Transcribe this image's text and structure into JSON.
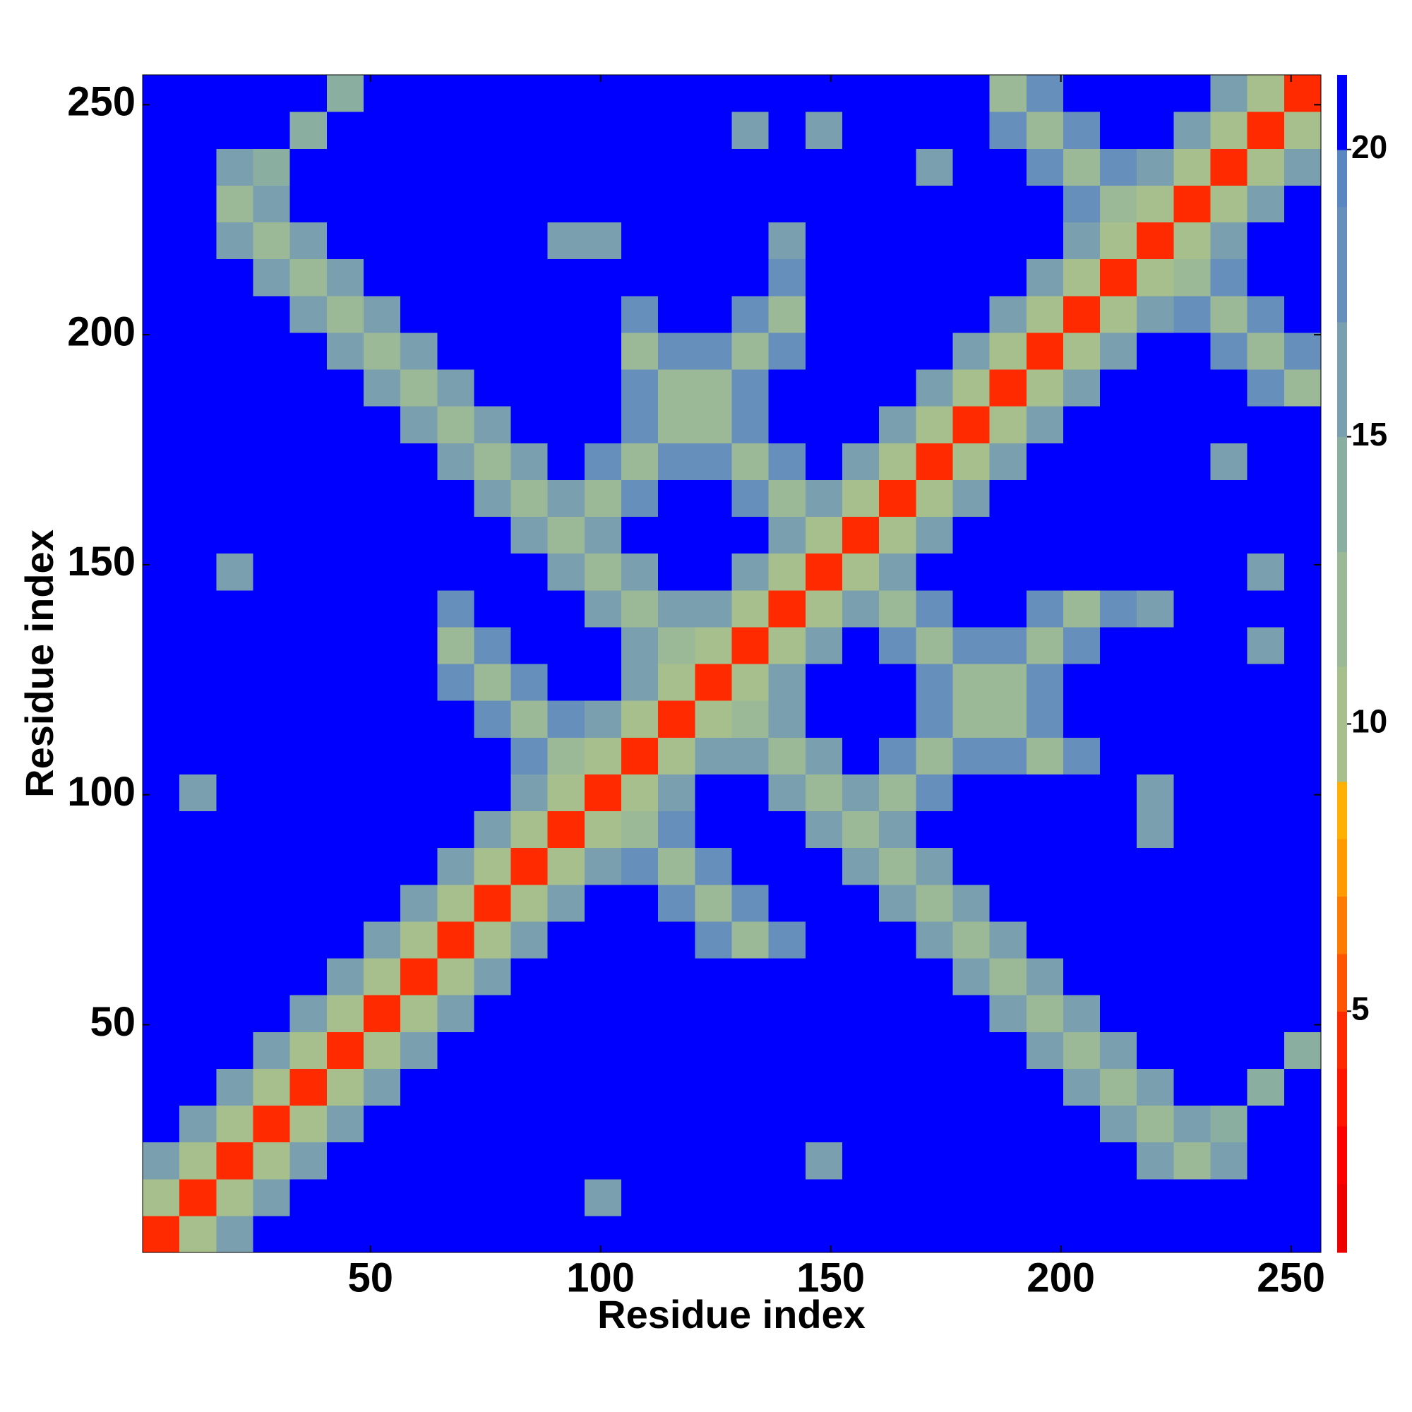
{
  "chart_data": {
    "type": "heatmap",
    "xlabel": "Residue index",
    "ylabel": "Residue index",
    "xlim": [
      0.5,
      256.5
    ],
    "ylim": [
      0.5,
      256.5
    ],
    "xticks": [
      50,
      100,
      150,
      200,
      250
    ],
    "yticks": [
      50,
      100,
      150,
      200,
      250
    ],
    "xbins": [
      0.5,
      8.5,
      16.5,
      24.5,
      32.5,
      40.5,
      48.5,
      56.5,
      64.5,
      72.5,
      80.5,
      88.5,
      96.5,
      104.5,
      112.5,
      120.5,
      128.5,
      136.5,
      144.5,
      152.5,
      160.5,
      168.5,
      176.5,
      184.5,
      192.5,
      200.5,
      208.5,
      216.5,
      224.5,
      232.5,
      240.5,
      248.5,
      256.5
    ],
    "ybins": [
      0.5,
      8.5,
      16.5,
      24.5,
      32.5,
      40.5,
      48.5,
      56.5,
      64.5,
      72.5,
      80.5,
      88.5,
      96.5,
      104.5,
      112.5,
      120.5,
      128.5,
      136.5,
      144.5,
      152.5,
      160.5,
      168.5,
      176.5,
      184.5,
      192.5,
      200.5,
      208.5,
      216.5,
      224.5,
      232.5,
      240.5,
      248.5,
      256.5
    ],
    "values": [
      [
        4,
        9,
        15,
        21,
        21,
        21,
        21,
        21,
        21,
        21,
        21,
        21,
        21,
        21,
        21,
        21,
        21,
        21,
        21,
        21,
        21,
        21,
        21,
        21,
        21,
        21,
        21,
        21,
        21,
        21,
        21,
        21
      ],
      [
        9,
        4,
        9,
        15,
        21,
        21,
        21,
        21,
        21,
        21,
        21,
        21,
        16,
        21,
        21,
        21,
        21,
        21,
        21,
        21,
        21,
        21,
        21,
        21,
        21,
        21,
        21,
        21,
        21,
        21,
        21,
        21
      ],
      [
        15,
        9,
        4,
        9,
        15,
        21,
        21,
        21,
        21,
        21,
        21,
        21,
        21,
        21,
        21,
        21,
        21,
        21,
        15,
        21,
        21,
        21,
        21,
        21,
        21,
        21,
        21,
        16,
        11,
        16,
        21,
        21
      ],
      [
        21,
        15,
        9,
        4,
        9,
        15,
        21,
        21,
        21,
        21,
        21,
        21,
        21,
        21,
        21,
        21,
        21,
        21,
        21,
        21,
        21,
        21,
        21,
        21,
        21,
        21,
        16,
        11,
        16,
        13,
        21,
        21
      ],
      [
        21,
        21,
        15,
        9,
        4,
        9,
        15,
        21,
        21,
        21,
        21,
        21,
        21,
        21,
        21,
        21,
        21,
        21,
        21,
        21,
        21,
        21,
        21,
        21,
        21,
        16,
        11,
        16,
        21,
        21,
        13,
        21
      ],
      [
        21,
        21,
        21,
        15,
        9,
        4,
        9,
        15,
        21,
        21,
        21,
        21,
        21,
        21,
        21,
        21,
        21,
        21,
        21,
        21,
        21,
        21,
        21,
        21,
        16,
        11,
        16,
        21,
        21,
        21,
        21,
        13
      ],
      [
        21,
        21,
        21,
        21,
        15,
        9,
        4,
        9,
        15,
        21,
        21,
        21,
        21,
        21,
        21,
        21,
        21,
        21,
        21,
        21,
        21,
        21,
        21,
        16,
        11,
        16,
        21,
        21,
        21,
        21,
        21,
        21
      ],
      [
        21,
        21,
        21,
        21,
        21,
        15,
        9,
        4,
        9,
        15,
        21,
        21,
        21,
        21,
        21,
        21,
        21,
        21,
        21,
        21,
        21,
        21,
        16,
        11,
        16,
        21,
        21,
        21,
        21,
        21,
        21,
        21
      ],
      [
        21,
        21,
        21,
        21,
        21,
        21,
        15,
        9,
        4,
        9,
        15,
        21,
        21,
        21,
        21,
        17,
        12,
        17,
        21,
        21,
        21,
        16,
        11,
        16,
        21,
        21,
        21,
        21,
        21,
        21,
        21,
        21
      ],
      [
        21,
        21,
        21,
        21,
        21,
        21,
        21,
        15,
        9,
        4,
        9,
        15,
        21,
        21,
        17,
        12,
        17,
        21,
        21,
        21,
        16,
        11,
        16,
        21,
        21,
        21,
        21,
        21,
        21,
        21,
        21,
        21
      ],
      [
        21,
        21,
        21,
        21,
        21,
        21,
        21,
        21,
        15,
        9,
        4,
        9,
        15,
        17,
        12,
        17,
        21,
        21,
        21,
        16,
        11,
        16,
        21,
        21,
        21,
        21,
        21,
        21,
        21,
        21,
        21,
        21
      ],
      [
        21,
        21,
        21,
        21,
        21,
        21,
        21,
        21,
        21,
        15,
        9,
        4,
        9,
        12,
        17,
        21,
        21,
        21,
        16,
        11,
        16,
        21,
        21,
        21,
        21,
        21,
        21,
        16,
        21,
        21,
        21,
        21
      ],
      [
        21,
        16,
        21,
        21,
        21,
        21,
        21,
        21,
        21,
        21,
        15,
        9,
        4,
        9,
        15,
        21,
        21,
        16,
        11,
        16,
        12,
        17,
        21,
        21,
        21,
        21,
        21,
        16,
        21,
        21,
        21,
        21
      ],
      [
        21,
        21,
        21,
        21,
        21,
        21,
        21,
        21,
        21,
        21,
        17,
        12,
        9,
        4,
        9,
        15,
        16,
        11,
        16,
        21,
        17,
        12,
        17,
        17,
        12,
        17,
        21,
        21,
        21,
        21,
        21,
        21
      ],
      [
        21,
        21,
        21,
        21,
        21,
        21,
        21,
        21,
        21,
        17,
        12,
        17,
        15,
        9,
        4,
        9,
        11,
        16,
        21,
        21,
        21,
        17,
        12,
        12,
        17,
        21,
        21,
        21,
        21,
        21,
        21,
        21
      ],
      [
        21,
        21,
        21,
        21,
        21,
        21,
        21,
        21,
        17,
        12,
        17,
        21,
        21,
        15,
        9,
        4,
        9,
        15,
        21,
        21,
        21,
        17,
        12,
        12,
        17,
        21,
        21,
        21,
        21,
        21,
        21,
        21
      ],
      [
        21,
        21,
        21,
        21,
        21,
        21,
        21,
        21,
        12,
        17,
        21,
        21,
        21,
        16,
        11,
        9,
        4,
        9,
        15,
        21,
        17,
        12,
        17,
        17,
        12,
        17,
        21,
        21,
        21,
        21,
        15,
        21
      ],
      [
        21,
        21,
        21,
        21,
        21,
        21,
        21,
        21,
        17,
        21,
        21,
        21,
        16,
        11,
        16,
        15,
        9,
        4,
        9,
        15,
        12,
        17,
        21,
        21,
        17,
        12,
        17,
        16,
        21,
        21,
        21,
        21
      ],
      [
        21,
        21,
        15,
        21,
        21,
        21,
        21,
        21,
        21,
        21,
        21,
        16,
        11,
        16,
        21,
        21,
        15,
        9,
        4,
        9,
        15,
        21,
        21,
        21,
        21,
        21,
        21,
        21,
        21,
        21,
        16,
        21
      ],
      [
        21,
        21,
        21,
        21,
        21,
        21,
        21,
        21,
        21,
        21,
        16,
        11,
        16,
        21,
        21,
        21,
        21,
        15,
        9,
        4,
        9,
        15,
        21,
        21,
        21,
        21,
        21,
        21,
        21,
        21,
        21,
        21
      ],
      [
        21,
        21,
        21,
        21,
        21,
        21,
        21,
        21,
        21,
        16,
        11,
        16,
        12,
        17,
        21,
        21,
        17,
        12,
        15,
        9,
        4,
        9,
        15,
        21,
        21,
        21,
        21,
        21,
        21,
        21,
        21,
        21
      ],
      [
        21,
        21,
        21,
        21,
        21,
        21,
        21,
        21,
        16,
        11,
        16,
        21,
        17,
        12,
        17,
        17,
        12,
        17,
        21,
        15,
        9,
        4,
        9,
        15,
        21,
        21,
        21,
        21,
        21,
        16,
        21,
        21
      ],
      [
        21,
        21,
        21,
        21,
        21,
        21,
        21,
        16,
        11,
        16,
        21,
        21,
        21,
        17,
        12,
        12,
        17,
        21,
        21,
        21,
        15,
        9,
        4,
        9,
        15,
        21,
        21,
        21,
        21,
        21,
        21,
        21
      ],
      [
        21,
        21,
        21,
        21,
        21,
        21,
        16,
        11,
        16,
        21,
        21,
        21,
        21,
        17,
        12,
        12,
        17,
        21,
        21,
        21,
        21,
        15,
        9,
        4,
        9,
        15,
        21,
        21,
        21,
        21,
        17,
        12
      ],
      [
        21,
        21,
        21,
        21,
        21,
        16,
        11,
        16,
        21,
        21,
        21,
        21,
        21,
        12,
        17,
        17,
        12,
        17,
        21,
        21,
        21,
        21,
        15,
        9,
        4,
        9,
        15,
        21,
        21,
        17,
        12,
        17
      ],
      [
        21,
        21,
        21,
        21,
        16,
        11,
        16,
        21,
        21,
        21,
        21,
        21,
        21,
        17,
        21,
        21,
        17,
        12,
        21,
        21,
        21,
        21,
        21,
        15,
        9,
        4,
        9,
        15,
        17,
        12,
        17,
        21
      ],
      [
        21,
        21,
        21,
        16,
        11,
        16,
        21,
        21,
        21,
        21,
        21,
        21,
        21,
        21,
        21,
        21,
        21,
        17,
        21,
        21,
        21,
        21,
        21,
        21,
        15,
        9,
        4,
        9,
        12,
        17,
        21,
        21
      ],
      [
        21,
        21,
        16,
        11,
        16,
        21,
        21,
        21,
        21,
        21,
        21,
        16,
        16,
        21,
        21,
        21,
        21,
        16,
        21,
        21,
        21,
        21,
        21,
        21,
        21,
        15,
        9,
        4,
        9,
        15,
        21,
        21
      ],
      [
        21,
        21,
        11,
        16,
        21,
        21,
        21,
        21,
        21,
        21,
        21,
        21,
        21,
        21,
        21,
        21,
        21,
        21,
        21,
        21,
        21,
        21,
        21,
        21,
        21,
        17,
        12,
        9,
        4,
        9,
        15,
        21
      ],
      [
        21,
        21,
        16,
        13,
        21,
        21,
        21,
        21,
        21,
        21,
        21,
        21,
        21,
        21,
        21,
        21,
        21,
        21,
        21,
        21,
        21,
        16,
        21,
        21,
        17,
        12,
        17,
        15,
        9,
        4,
        9,
        15
      ],
      [
        21,
        21,
        21,
        21,
        13,
        21,
        21,
        21,
        21,
        21,
        21,
        21,
        21,
        21,
        21,
        21,
        15,
        21,
        16,
        21,
        21,
        21,
        21,
        17,
        12,
        17,
        21,
        21,
        15,
        9,
        4,
        9
      ],
      [
        21,
        21,
        21,
        21,
        21,
        13,
        21,
        21,
        21,
        21,
        21,
        21,
        21,
        21,
        21,
        21,
        21,
        21,
        21,
        21,
        21,
        21,
        21,
        12,
        17,
        21,
        21,
        21,
        21,
        15,
        9,
        4
      ]
    ],
    "colorbar": {
      "lim": [
        0.8,
        21.3
      ],
      "ticks": [
        5,
        10,
        15,
        20
      ],
      "levels": [
        0.8,
        2,
        3,
        4,
        5,
        6,
        7,
        8,
        9,
        11,
        13,
        15,
        17,
        19,
        20,
        21.3
      ],
      "colors": [
        "#ee0000",
        "#ff0000",
        "#ff1500",
        "#ff2a00",
        "#ff5500",
        "#ff7a00",
        "#ff9a00",
        "#ffb000",
        "#a6bf8c",
        "#9bb897",
        "#8aaea0",
        "#7a9fae",
        "#6690bb",
        "#5a87c2",
        "#0000ff"
      ]
    }
  }
}
